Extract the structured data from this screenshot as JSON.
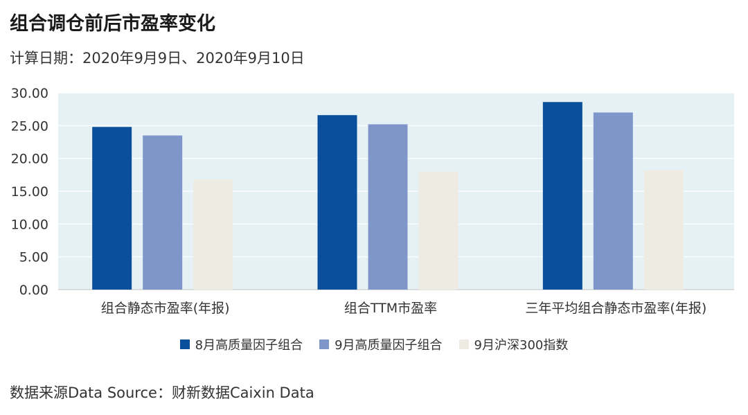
{
  "title": "组合调仓前后市盈率变化",
  "subtitle": "计算日期：2020年9月9日、2020年9月10日",
  "source": "数据来源Data Source：财新数据Caixin Data",
  "chart_data": {
    "type": "bar",
    "categories": [
      "组合静态市盈率(年报)",
      "组合TTM市盈率",
      "三年平均组合静态市盈率(年报)"
    ],
    "series": [
      {
        "name": "8月高质量因子组合",
        "color": "#0a4f9c",
        "values": [
          24.8,
          26.6,
          28.6
        ]
      },
      {
        "name": "9月高质量因子组合",
        "color": "#7f96cb",
        "values": [
          23.5,
          25.2,
          27.0
        ]
      },
      {
        "name": "9月沪深300指数",
        "color": "#edebe2",
        "values": [
          16.8,
          18.0,
          18.2
        ]
      }
    ],
    "y_ticks": [
      "30.00",
      "25.00",
      "20.00",
      "15.00",
      "10.00",
      "5.00",
      "0.00"
    ],
    "ylim": [
      0,
      30
    ],
    "plot_background": "#e6f1f6",
    "grid": true,
    "legend_position": "bottom-center"
  }
}
